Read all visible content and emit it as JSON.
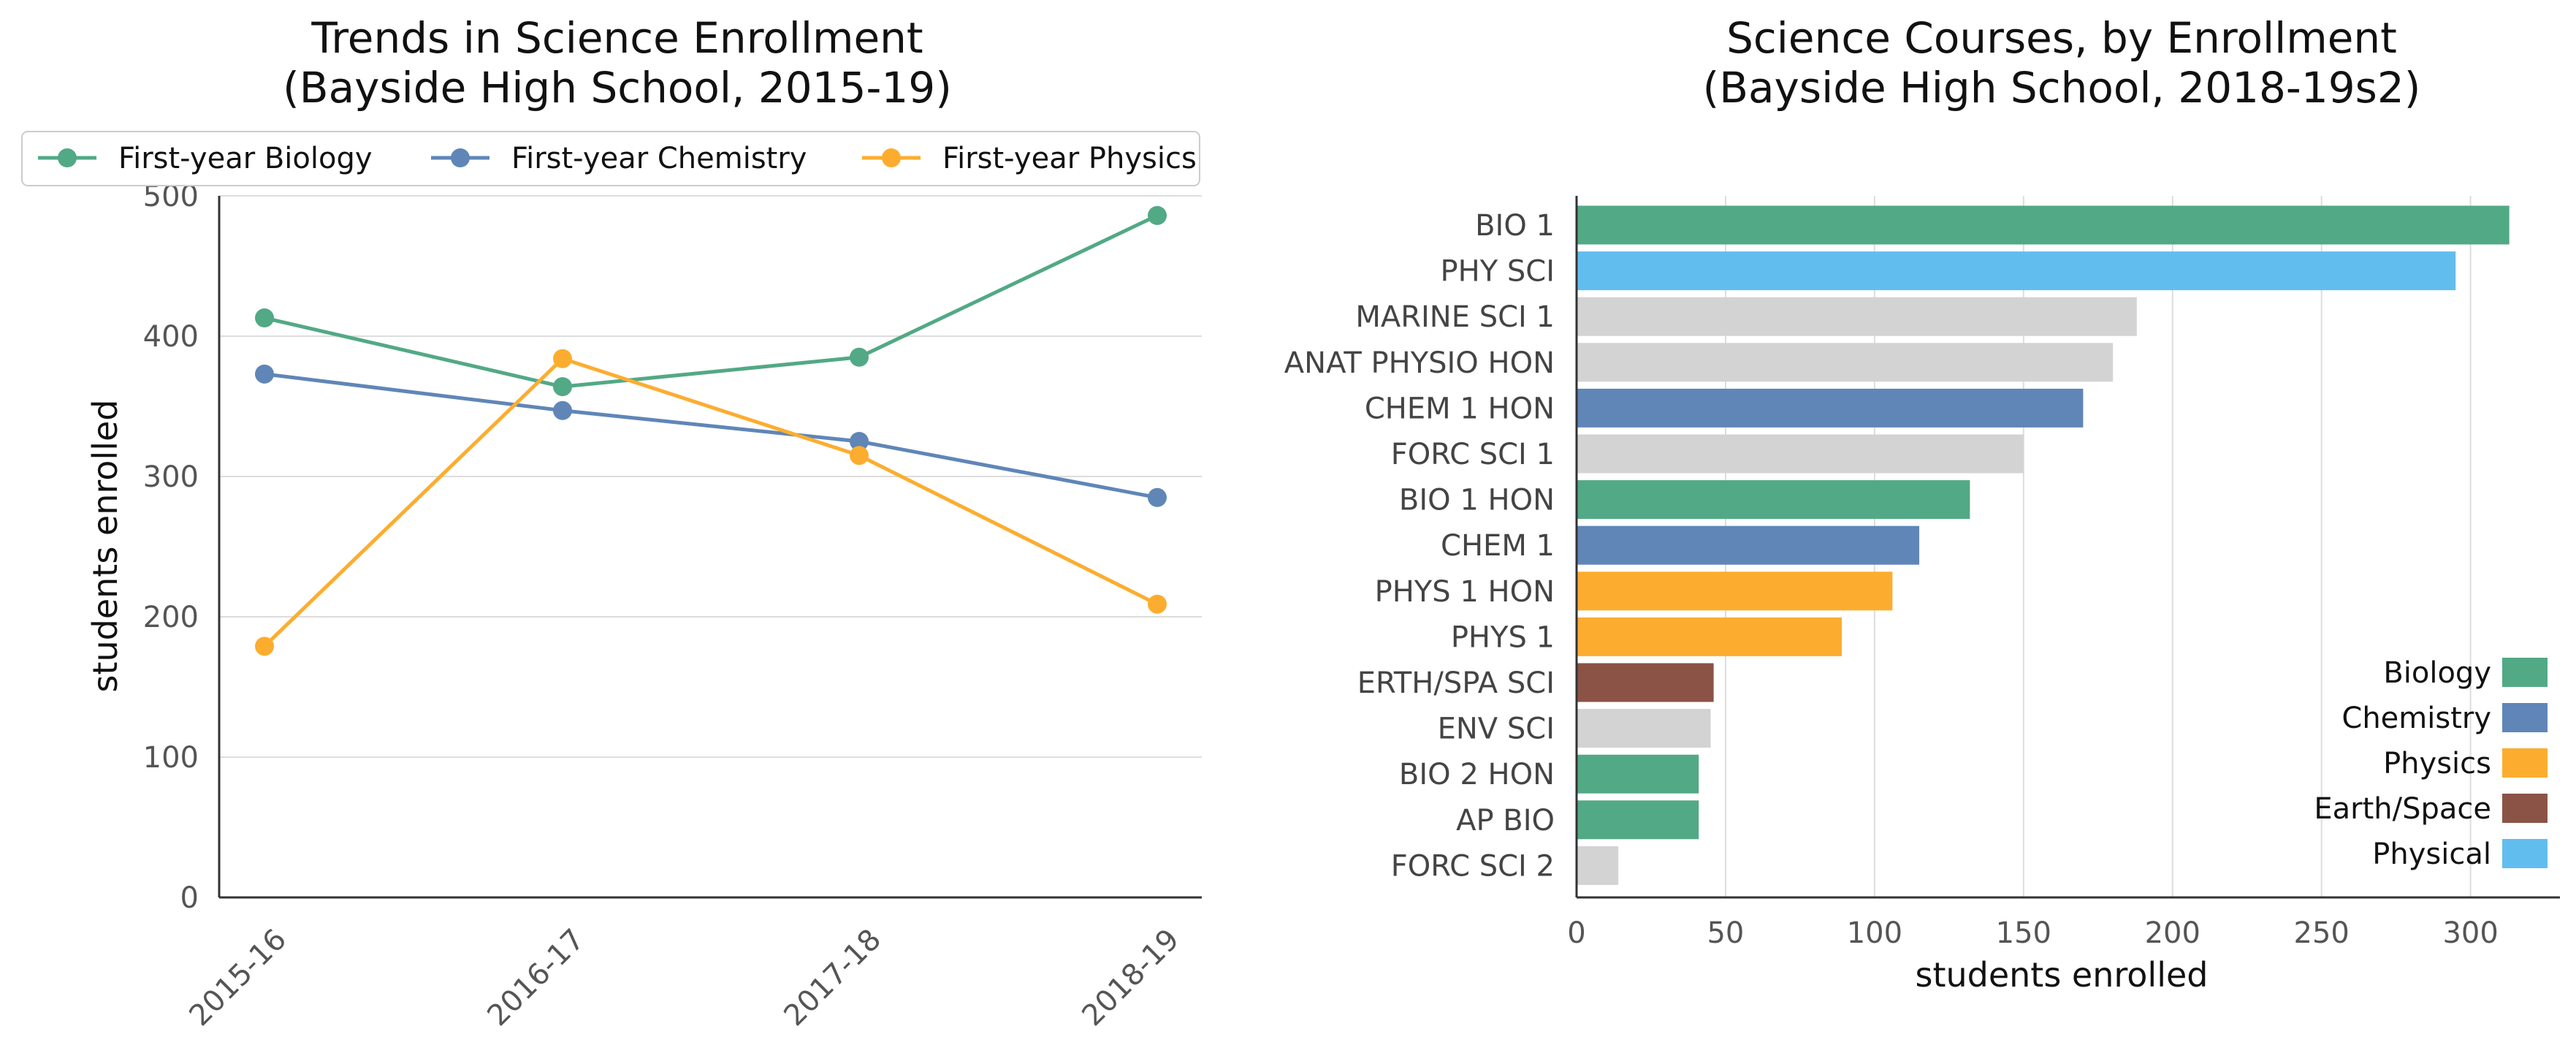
{
  "chart_data": [
    {
      "type": "line",
      "title": "Trends in Science Enrollment\n(Bayside High School, 2015-19)",
      "xlabel": "",
      "ylabel": "students enrolled",
      "categories": [
        "2015-16",
        "2016-17",
        "2017-18",
        "2018-19"
      ],
      "ylim": [
        0,
        500
      ],
      "yticks": [
        0,
        100,
        200,
        300,
        400,
        500
      ],
      "grid": "horizontal",
      "legend_position": "top",
      "series": [
        {
          "name": "First-year Biology",
          "color": "#52a985",
          "values": [
            413,
            364,
            385,
            486
          ]
        },
        {
          "name": "First-year Chemistry",
          "color": "#5f86b7",
          "values": [
            373,
            347,
            325,
            285
          ]
        },
        {
          "name": "First-year Physics",
          "color": "#fcad2f",
          "values": [
            179,
            384,
            315,
            209
          ]
        }
      ]
    },
    {
      "type": "bar",
      "orientation": "horizontal",
      "title": "Science Courses, by Enrollment\n(Bayside High School, 2018-19s2)",
      "xlabel": "students enrolled",
      "ylabel": "",
      "xlim": [
        0,
        330
      ],
      "xticks": [
        0,
        50,
        100,
        150,
        200,
        250,
        300
      ],
      "grid": "vertical",
      "legend_position": "lower right",
      "categories": [
        "BIO 1",
        "PHY SCI",
        "MARINE SCI 1",
        "ANAT PHYSIO HON",
        "CHEM 1 HON",
        "FORC SCI 1",
        "BIO 1 HON",
        "CHEM 1",
        "PHYS 1 HON",
        "PHYS 1",
        "ERTH/SPA SCI",
        "ENV SCI",
        "BIO 2 HON",
        "AP BIO",
        "FORC SCI 2"
      ],
      "values": [
        313,
        295,
        188,
        180,
        170,
        150,
        132,
        115,
        106,
        89,
        46,
        45,
        41,
        41,
        14
      ],
      "groups": [
        "Biology",
        "Physical",
        "Other",
        "Other",
        "Chemistry",
        "Other",
        "Biology",
        "Chemistry",
        "Physics",
        "Physics",
        "Earth/Space",
        "Other",
        "Biology",
        "Biology",
        "Other"
      ],
      "group_colors": {
        "Biology": "#52a985",
        "Chemistry": "#5f86b7",
        "Physics": "#fcad2f",
        "Earth/Space": "#8b5346",
        "Physical": "#62bdef",
        "Other": "#d3d3d3"
      },
      "legend": [
        "Biology",
        "Chemistry",
        "Physics",
        "Earth/Space",
        "Physical"
      ]
    }
  ]
}
